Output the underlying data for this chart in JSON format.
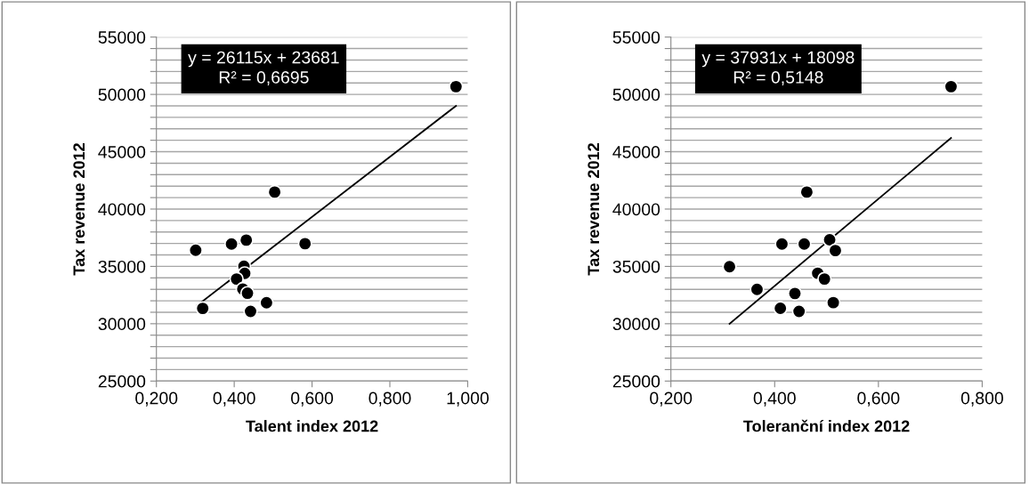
{
  "chart_data": [
    {
      "type": "scatter",
      "xlabel": "Talent index 2012",
      "ylabel": "Tax revenue 2012",
      "grid": "y",
      "xlim": [
        0.2,
        1.0
      ],
      "xticks": [
        {
          "value": 0.2,
          "label": "0,200"
        },
        {
          "value": 0.4,
          "label": "0,400"
        },
        {
          "value": 0.6,
          "label": "0,600"
        },
        {
          "value": 0.8,
          "label": "0,800"
        },
        {
          "value": 1.0,
          "label": "1,000"
        }
      ],
      "ylim": [
        25000,
        55000
      ],
      "yticks": [
        25000,
        {
          "value": 26000,
          "label": null
        },
        {
          "value": 27000,
          "label": null
        },
        {
          "value": 28000,
          "label": null
        },
        {
          "value": 29000,
          "label": null
        },
        30000,
        {
          "value": 31000,
          "label": null
        },
        {
          "value": 32000,
          "label": null
        },
        {
          "value": 33000,
          "label": null
        },
        {
          "value": 34000,
          "label": null
        },
        35000,
        {
          "value": 36000,
          "label": null
        },
        {
          "value": 37000,
          "label": null
        },
        {
          "value": 38000,
          "label": null
        },
        {
          "value": 39000,
          "label": null
        },
        40000,
        {
          "value": 41000,
          "label": null
        },
        {
          "value": 42000,
          "label": null
        },
        {
          "value": 43000,
          "label": null
        },
        {
          "value": 44000,
          "label": null
        },
        45000,
        {
          "value": 46000,
          "label": null
        },
        {
          "value": 47000,
          "label": null
        },
        {
          "value": 48000,
          "label": null
        },
        {
          "value": 49000,
          "label": null
        },
        50000,
        {
          "value": 51000,
          "label": null
        },
        {
          "value": 52000,
          "label": null
        },
        {
          "value": 53000,
          "label": null
        },
        {
          "value": 54000,
          "label": null
        },
        55000
      ],
      "annotations": [
        "y = 26115x + 23681",
        "R² = 0,6695"
      ],
      "series": [
        {
          "marker": "circle",
          "color": "#000000",
          "x": [
            0.97,
            0.504,
            0.431,
            0.393,
            0.582,
            0.301,
            0.425,
            0.427,
            0.406,
            0.422,
            0.434,
            0.483,
            0.442,
            0.319
          ],
          "values": [
            50680,
            41480,
            37290,
            36950,
            36980,
            36410,
            35010,
            34390,
            33900,
            33020,
            32660,
            31830,
            31080,
            31340
          ]
        },
        {
          "type": "line",
          "color": "#000000",
          "x": [
            0.305,
            0.97
          ],
          "values": [
            31600,
            49000
          ]
        }
      ]
    },
    {
      "type": "scatter",
      "xlabel": "Toleranční index 2012",
      "ylabel": "Tax revenue 2012",
      "grid": "y",
      "xlim": [
        0.2,
        0.8
      ],
      "xticks": [
        {
          "value": 0.2,
          "label": "0,200"
        },
        {
          "value": 0.4,
          "label": "0,400"
        },
        {
          "value": 0.6,
          "label": "0,600"
        },
        {
          "value": 0.8,
          "label": "0,800"
        }
      ],
      "ylim": [
        25000,
        55000
      ],
      "yticks": [
        25000,
        {
          "value": 26000,
          "label": null
        },
        {
          "value": 27000,
          "label": null
        },
        {
          "value": 28000,
          "label": null
        },
        {
          "value": 29000,
          "label": null
        },
        30000,
        {
          "value": 31000,
          "label": null
        },
        {
          "value": 32000,
          "label": null
        },
        {
          "value": 33000,
          "label": null
        },
        {
          "value": 34000,
          "label": null
        },
        35000,
        {
          "value": 36000,
          "label": null
        },
        {
          "value": 37000,
          "label": null
        },
        {
          "value": 38000,
          "label": null
        },
        {
          "value": 39000,
          "label": null
        },
        40000,
        {
          "value": 41000,
          "label": null
        },
        {
          "value": 42000,
          "label": null
        },
        {
          "value": 43000,
          "label": null
        },
        {
          "value": 44000,
          "label": null
        },
        45000,
        {
          "value": 46000,
          "label": null
        },
        {
          "value": 47000,
          "label": null
        },
        {
          "value": 48000,
          "label": null
        },
        {
          "value": 49000,
          "label": null
        },
        50000,
        {
          "value": 51000,
          "label": null
        },
        {
          "value": 52000,
          "label": null
        },
        {
          "value": 53000,
          "label": null
        },
        {
          "value": 54000,
          "label": null
        },
        55000
      ],
      "annotations": [
        "y = 37931x + 18098",
        "R² = 0,5148"
      ],
      "series": [
        {
          "marker": "circle",
          "color": "#000000",
          "x": [
            0.74,
            0.462,
            0.506,
            0.414,
            0.457,
            0.517,
            0.313,
            0.483,
            0.496,
            0.366,
            0.439,
            0.513,
            0.411,
            0.447
          ],
          "values": [
            50680,
            41480,
            37320,
            36950,
            36950,
            36380,
            34970,
            34400,
            33900,
            33000,
            32640,
            31840,
            31350,
            31080
          ]
        },
        {
          "type": "line",
          "color": "#000000",
          "x": [
            0.313,
            0.74
          ],
          "values": [
            30000,
            46200
          ]
        }
      ]
    }
  ]
}
